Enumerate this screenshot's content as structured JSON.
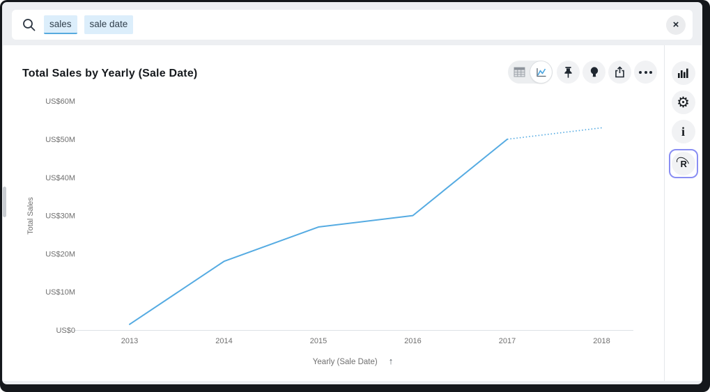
{
  "search": {
    "icon": "magnifier",
    "tokens": [
      {
        "label": "sales",
        "active": true
      },
      {
        "label": "sale date",
        "active": false
      }
    ],
    "close_glyph": "×"
  },
  "panel": {
    "title": "Total Sales by Yearly (Sale Date)"
  },
  "toolbar": {
    "view_toggle": {
      "options": [
        "table-view",
        "chart-view"
      ],
      "selected": "chart-view"
    },
    "buttons": [
      "pin",
      "insights-lightbulb",
      "share",
      "more-options"
    ]
  },
  "sidebar": {
    "buttons": [
      "visualization",
      "settings",
      "information",
      "r-script"
    ],
    "active": "r-script",
    "settings_glyph": "⚙",
    "info_glyph": "i",
    "r_glyph": "R",
    "focus_ring_color": "#898ef3"
  },
  "chart_data": {
    "type": "line",
    "title": "Total Sales by Yearly (Sale Date)",
    "categories": [
      "2013",
      "2014",
      "2015",
      "2016",
      "2017",
      "2018"
    ],
    "values": [
      1.5,
      18,
      27,
      30,
      50,
      53
    ],
    "unit": "US$ millions",
    "forecast_from_index": 4,
    "forecast_style": "dotted",
    "xlabel": "Yearly (Sale Date)",
    "ylabel": "Total Sales",
    "x_sort_icon": "↑",
    "ylim": [
      0,
      60
    ],
    "ytick_step": 10,
    "ytick_labels": [
      "US$0",
      "US$10M",
      "US$20M",
      "US$30M",
      "US$40M",
      "US$50M",
      "US$60M"
    ],
    "line_color": "#55abe2",
    "axis_color": "#dde1e6",
    "grid": false,
    "legend": false
  }
}
